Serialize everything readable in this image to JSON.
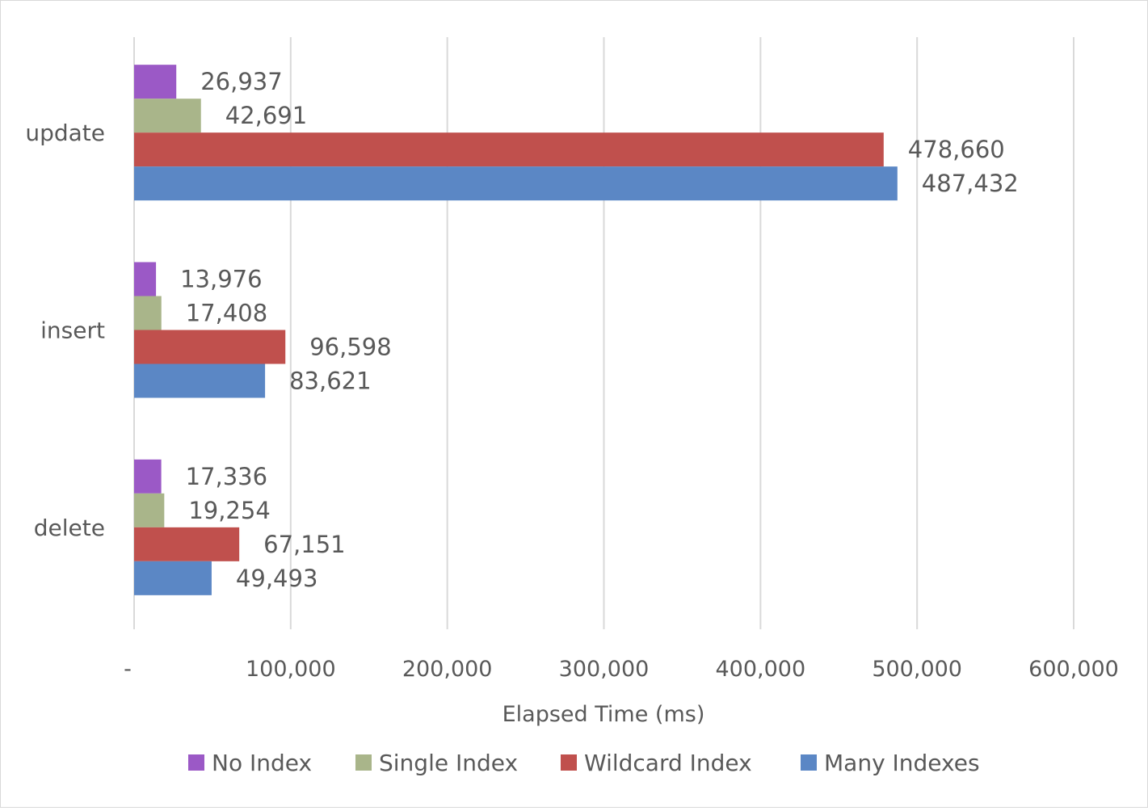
{
  "chart_data": {
    "type": "bar",
    "orientation": "horizontal",
    "categories": [
      "update",
      "insert",
      "delete"
    ],
    "series": [
      {
        "name": "No Index",
        "color": "#9b59c6",
        "values": [
          26937,
          13976,
          17336
        ],
        "labels": [
          "26,937",
          "13,976",
          "17,336"
        ]
      },
      {
        "name": "Single Index",
        "color": "#a9b58a",
        "values": [
          42691,
          17408,
          19254
        ],
        "labels": [
          "42,691",
          "17,408",
          "19,254"
        ]
      },
      {
        "name": "Wildcard Index",
        "color": "#c0504d",
        "values": [
          478660,
          96598,
          67151
        ],
        "labels": [
          "478,660",
          "96,598",
          "67,151"
        ]
      },
      {
        "name": "Many Indexes",
        "color": "#5b87c5",
        "values": [
          487432,
          83621,
          49493
        ],
        "labels": [
          "487,432",
          "83,621",
          "49,493"
        ]
      }
    ],
    "xlabel": "Elapsed Time (ms)",
    "ylabel": "",
    "xlim": [
      0,
      600000
    ],
    "xticks": [
      0,
      100000,
      200000,
      300000,
      400000,
      500000,
      600000
    ],
    "xtick_labels": [
      "-",
      "100,000",
      "200,000",
      "300,000",
      "400,000",
      "500,000",
      "600,000"
    ],
    "grid": true,
    "legend_position": "bottom"
  }
}
